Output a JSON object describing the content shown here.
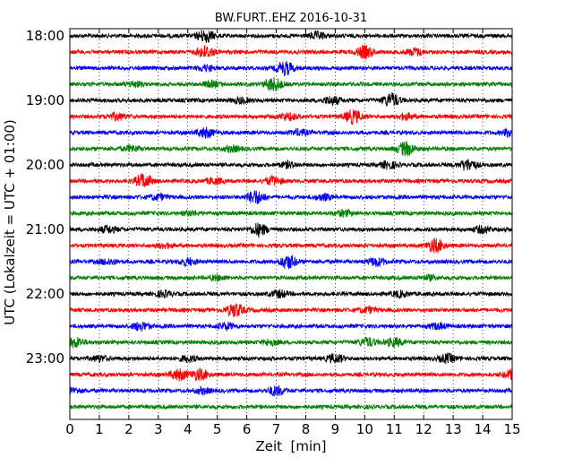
{
  "chart_data": {
    "type": "line",
    "title": "BW.FURT..EHZ 2016-10-31",
    "xlabel": "Zeit  [min]",
    "ylabel": "UTC (Lokalzeit = UTC + 01:00)",
    "xlim": [
      0,
      15
    ],
    "x_ticks": [
      "0",
      "1",
      "2",
      "3",
      "4",
      "5",
      "6",
      "7",
      "8",
      "9",
      "10",
      "11",
      "12",
      "13",
      "14",
      "15"
    ],
    "y_ticks": [
      "18:00",
      "19:00",
      "20:00",
      "21:00",
      "22:00",
      "23:00"
    ],
    "grid": "vertical-dotted",
    "traces": [
      {
        "start": "18:00",
        "color": "#000000",
        "bursts": [
          [
            4.6,
            0.9
          ],
          [
            8.4,
            0.5
          ]
        ]
      },
      {
        "start": "18:15",
        "color": "#ff0000",
        "bursts": [
          [
            4.6,
            0.9
          ],
          [
            10.0,
            0.9
          ],
          [
            11.7,
            0.5
          ]
        ]
      },
      {
        "start": "18:30",
        "color": "#0000ff",
        "bursts": [
          [
            7.3,
            1.0
          ],
          [
            4.6,
            0.4
          ]
        ]
      },
      {
        "start": "18:45",
        "color": "#008000",
        "bursts": [
          [
            6.9,
            1.0
          ],
          [
            2.2,
            0.4
          ],
          [
            4.8,
            0.4
          ]
        ]
      },
      {
        "start": "19:00",
        "color": "#000000",
        "bursts": [
          [
            10.9,
            1.0
          ],
          [
            8.9,
            0.6
          ],
          [
            5.8,
            0.4
          ]
        ]
      },
      {
        "start": "19:15",
        "color": "#ff0000",
        "bursts": [
          [
            9.6,
            1.0
          ],
          [
            1.6,
            0.5
          ],
          [
            7.4,
            0.5
          ],
          [
            11.4,
            0.4
          ]
        ]
      },
      {
        "start": "19:30",
        "color": "#0000ff",
        "bursts": [
          [
            4.6,
            0.7
          ],
          [
            15.0,
            0.8
          ],
          [
            7.8,
            0.4
          ]
        ]
      },
      {
        "start": "19:45",
        "color": "#008000",
        "bursts": [
          [
            11.4,
            1.0
          ],
          [
            2.1,
            0.4
          ],
          [
            5.5,
            0.4
          ]
        ]
      },
      {
        "start": "20:00",
        "color": "#000000",
        "bursts": [
          [
            13.5,
            0.8
          ],
          [
            10.8,
            0.5
          ],
          [
            7.4,
            0.4
          ]
        ]
      },
      {
        "start": "20:15",
        "color": "#ff0000",
        "bursts": [
          [
            2.5,
            1.0
          ],
          [
            6.9,
            0.6
          ],
          [
            4.9,
            0.4
          ]
        ]
      },
      {
        "start": "20:30",
        "color": "#0000ff",
        "bursts": [
          [
            6.3,
            1.0
          ],
          [
            3.0,
            0.4
          ],
          [
            8.6,
            0.4
          ]
        ]
      },
      {
        "start": "20:45",
        "color": "#008000",
        "bursts": [
          [
            9.3,
            0.4
          ],
          [
            4.1,
            0.3
          ]
        ]
      },
      {
        "start": "21:00",
        "color": "#000000",
        "bursts": [
          [
            6.4,
            0.9
          ],
          [
            1.3,
            0.5
          ],
          [
            14.0,
            0.5
          ]
        ]
      },
      {
        "start": "21:15",
        "color": "#ff0000",
        "bursts": [
          [
            12.4,
            1.0
          ],
          [
            3.2,
            0.3
          ]
        ]
      },
      {
        "start": "21:30",
        "color": "#0000ff",
        "bursts": [
          [
            7.4,
            1.0
          ],
          [
            4.0,
            0.5
          ],
          [
            10.4,
            0.6
          ],
          [
            1.3,
            0.4
          ]
        ]
      },
      {
        "start": "21:45",
        "color": "#008000",
        "bursts": [
          [
            5.0,
            0.3
          ],
          [
            12.2,
            0.3
          ]
        ]
      },
      {
        "start": "22:00",
        "color": "#000000",
        "bursts": [
          [
            7.1,
            0.5
          ],
          [
            3.2,
            0.4
          ],
          [
            11.2,
            0.4
          ]
        ]
      },
      {
        "start": "22:15",
        "color": "#ff0000",
        "bursts": [
          [
            5.6,
            1.0
          ],
          [
            10.1,
            0.4
          ]
        ]
      },
      {
        "start": "22:30",
        "color": "#0000ff",
        "bursts": [
          [
            2.4,
            0.6
          ],
          [
            5.3,
            0.5
          ],
          [
            12.5,
            0.4
          ]
        ]
      },
      {
        "start": "22:45",
        "color": "#008000",
        "bursts": [
          [
            0.2,
            0.7
          ],
          [
            10.1,
            0.6
          ],
          [
            11.0,
            0.6
          ],
          [
            6.8,
            0.4
          ]
        ]
      },
      {
        "start": "23:00",
        "color": "#000000",
        "bursts": [
          [
            9.0,
            0.6
          ],
          [
            12.8,
            0.6
          ],
          [
            4.0,
            0.4
          ],
          [
            1.0,
            0.4
          ]
        ]
      },
      {
        "start": "23:15",
        "color": "#ff0000",
        "bursts": [
          [
            3.7,
            0.8
          ],
          [
            4.4,
            0.8
          ],
          [
            15.0,
            0.7
          ]
        ]
      },
      {
        "start": "23:30",
        "color": "#0000ff",
        "bursts": [
          [
            7.0,
            0.7
          ],
          [
            0.1,
            0.4
          ],
          [
            4.5,
            0.4
          ]
        ]
      },
      {
        "start": "23:45",
        "color": "#008000",
        "bursts": []
      }
    ]
  }
}
